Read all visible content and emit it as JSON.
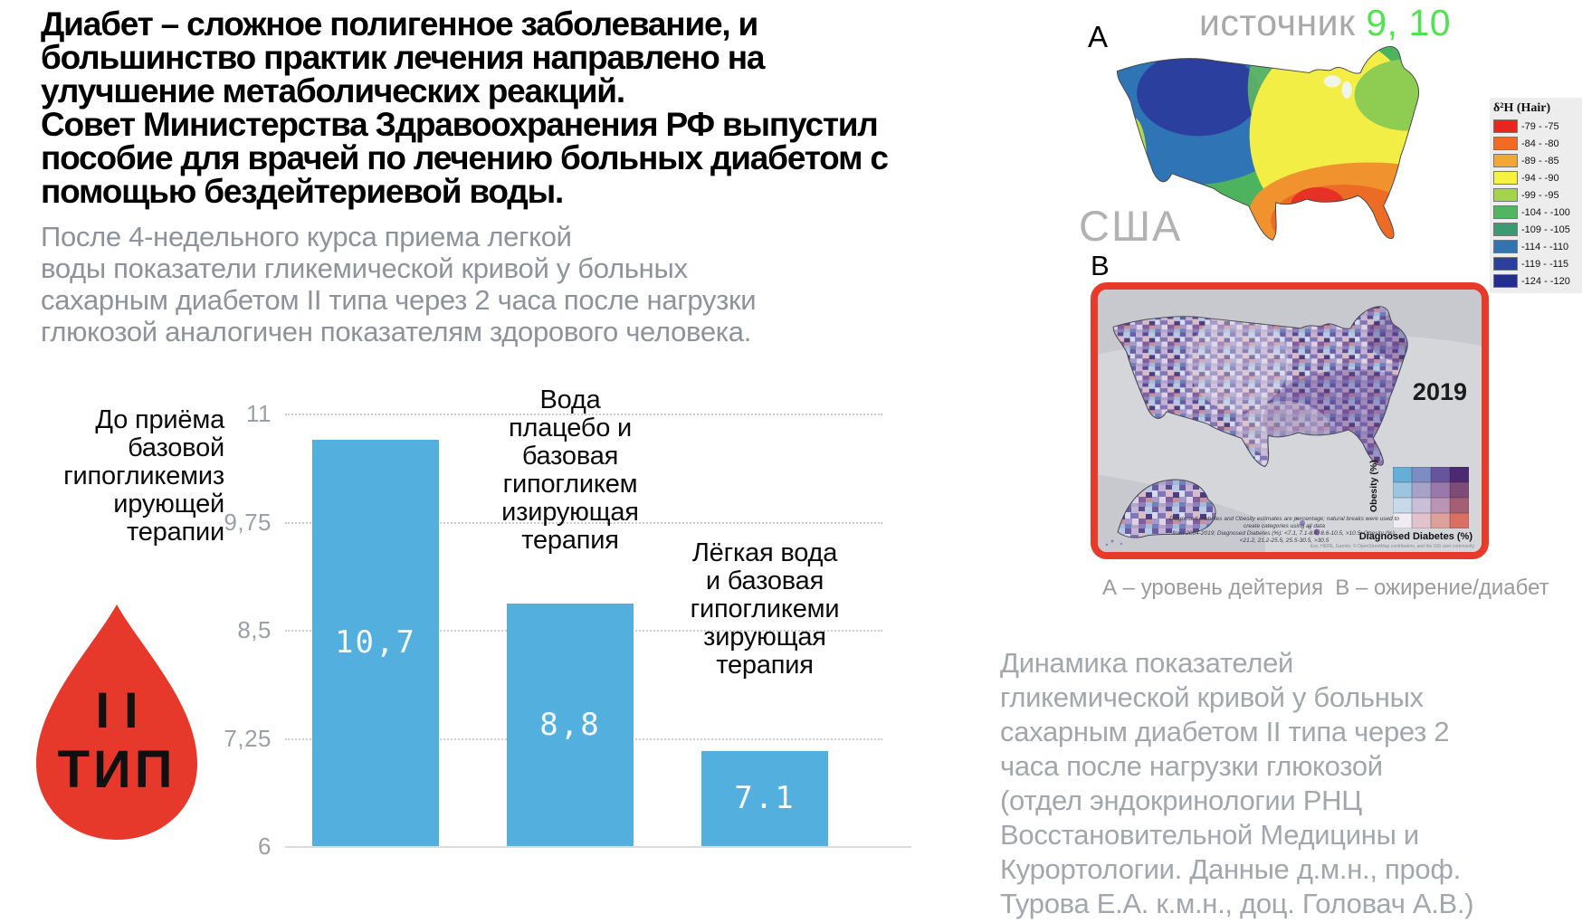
{
  "headline": {
    "text": "Диабет – сложное полигенное заболевание, и\nбольшинство практик лечения направлено на\nулучшение метаболических реакций.\nСовет Министерства Здравоохранения РФ выпустил\nпособие для врачей по лечению больных диабетом с\nпомощью бездейтериевой воды."
  },
  "intro": {
    "text": "После 4-недельного курса приема легкой\nводы показатели гликемической кривой у больных\nсахарным диабетом II типа через 2 часа после нагрузки\nглюкозой аналогичен показателям здорового человека."
  },
  "chart_data": {
    "type": "bar",
    "categories": [
      "До приёма базовой гипогликемизирующей терапии",
      "Вода плацебо и базовая гипогликемизирующая терапия",
      "Лёгкая вода и базовая гипогликемизирующая терапия"
    ],
    "values": [
      10.7,
      8.8,
      7.1
    ],
    "value_labels": [
      "10,7",
      "8,8",
      "7.1"
    ],
    "ticks": [
      {
        "v": 11,
        "label": "11"
      },
      {
        "v": 9.75,
        "label": "9,75"
      },
      {
        "v": 8.5,
        "label": "8,5"
      },
      {
        "v": 7.25,
        "label": "7,25"
      },
      {
        "v": 6,
        "label": "6"
      }
    ],
    "ylim": [
      6,
      11
    ],
    "bar_color": "#52AFDE",
    "grid": "dotted horizontal",
    "legend_position": "none",
    "title": "",
    "xlabel": "",
    "ylabel": ""
  },
  "chart_labels": {
    "cat1": "До приёма\nбазовой\nгипогликемиз\nирующей\nтерапии",
    "cat2": "Вода\nплацебо и\nбазовая\nгипогликем\nизирующая\nтерапия",
    "cat3": "Лёгкая вода\nи базовая\nгипогликеми\nзирующая\nтерапия"
  },
  "drop": {
    "line1": "II",
    "line2": "ТИП",
    "color": "#E6392B"
  },
  "source": {
    "label": "источник ",
    "numbers": "9, 10",
    "numbers_color": "#4FE44F"
  },
  "map_a": {
    "label": "A",
    "country": "США",
    "legend_title": "δ²H (Hair)",
    "legend": [
      {
        "color": "#e8251f",
        "range": "-79 - -75"
      },
      {
        "color": "#f26a24",
        "range": "-84 - -80"
      },
      {
        "color": "#f4a733",
        "range": "-89 - -85"
      },
      {
        "color": "#f7f23e",
        "range": "-94 - -90"
      },
      {
        "color": "#a4d44b",
        "range": "-99 - -95"
      },
      {
        "color": "#52b55f",
        "range": "-104 - -100"
      },
      {
        "color": "#3a9b72",
        "range": "-109 - -105"
      },
      {
        "color": "#3273b2",
        "range": "-114 - -110"
      },
      {
        "color": "#2c3f9f",
        "range": "-119 - -115"
      },
      {
        "color": "#232e8c",
        "range": "-124 - -120"
      }
    ]
  },
  "map_b": {
    "label": "B",
    "year": "2019",
    "legend_y": "Obesity (%)",
    "legend_x": "Diagnosed Diabetes (%)",
    "legend_rows": [
      [
        "#64aed8",
        "#7b8ec4",
        "#67549c",
        "#4c2a72"
      ],
      [
        "#9cc6e0",
        "#a7a2c9",
        "#9a78ab",
        "#7e4a77"
      ],
      [
        "#c6daea",
        "#c9bfd8",
        "#bb93b5",
        "#a55f74"
      ],
      [
        "#f0ecf4",
        "#e2c2cd",
        "#dda09a",
        "#d97062"
      ]
    ],
    "fine_print": "Diagnosed Diabetes and Obesity estimates are percentage; natural breaks were used to create categories using all data\nfrom 2004-2019; Diagnosed Diabetes (%): <7.1, 7.1-8.6, 8.6-10.5, >10.5; Obesity (%): <21.2, 21.2-25.5, 25.5-30.5, >30.5",
    "attribution": "Esri, HERE, Garmin, © OpenStreetMap contributors, and the GIS user community"
  },
  "caption": {
    "text": "А – уровень дейтерия  В – ожирение/диабет"
  },
  "note": {
    "text": "Динамика показателей\nгликемической кривой у больных\nсахарным диабетом II типа через 2\nчаса после нагрузки глюкозой\n(отдел эндокринологии РНЦ\nВосстановительной Медицины и\nКурортологии. Данные д.м.н., проф.\nТурова Е.А. к.м.н., доц. Головач А.В.)"
  }
}
